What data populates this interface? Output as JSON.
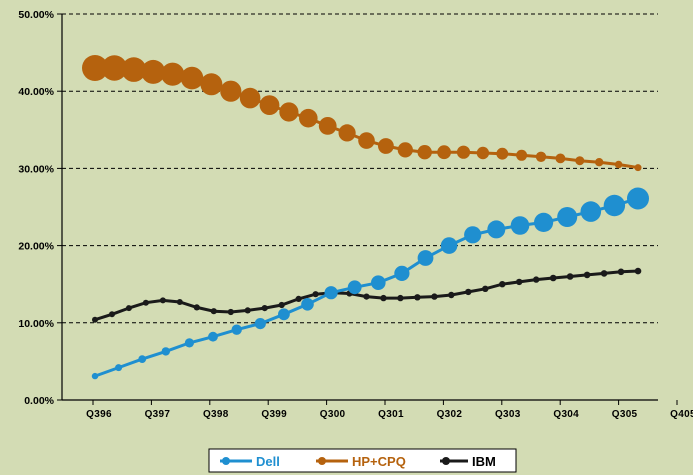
{
  "chart_data": {
    "type": "line",
    "title": "",
    "xlabel": "",
    "ylabel": "",
    "ylim": [
      0,
      50
    ],
    "y_ticks": [
      "0.00%",
      "10.00%",
      "20.00%",
      "30.00%",
      "40.00%",
      "50.00%"
    ],
    "x_ticks": [
      "Q396",
      "Q397",
      "Q398",
      "Q399",
      "Q300",
      "Q301",
      "Q302",
      "Q303",
      "Q304",
      "Q305",
      "Q405"
    ],
    "grid": "horizontal dashed",
    "legend_position": "bottom",
    "series": [
      {
        "name": "Dell",
        "color": "#1f8fd0",
        "values": [
          3.1,
          4.2,
          5.3,
          6.3,
          7.4,
          8.2,
          9.1,
          9.9,
          11.1,
          12.4,
          13.9,
          14.6,
          15.2,
          16.4,
          18.4,
          20.0,
          21.4,
          22.1,
          22.6,
          23.0,
          23.7,
          24.4,
          25.2,
          26.1
        ]
      },
      {
        "name": "HP+CPQ",
        "color": "#b5620e",
        "values": [
          43.0,
          43.0,
          42.8,
          42.5,
          42.2,
          41.7,
          40.9,
          40.0,
          39.1,
          38.2,
          37.3,
          36.5,
          35.5,
          34.6,
          33.6,
          32.9,
          32.4,
          32.1,
          32.1,
          32.1,
          32.0,
          31.9,
          31.7,
          31.5,
          31.3,
          31.0,
          30.8,
          30.5,
          30.1
        ]
      },
      {
        "name": "IBM",
        "color": "#1a1a1a",
        "values": [
          10.4,
          11.1,
          11.9,
          12.6,
          12.9,
          12.7,
          12.0,
          11.5,
          11.4,
          11.6,
          11.9,
          12.3,
          13.1,
          13.7,
          13.9,
          13.8,
          13.4,
          13.2,
          13.2,
          13.3,
          13.4,
          13.6,
          14.0,
          14.4,
          15.0,
          15.3,
          15.6,
          15.8,
          16.0,
          16.2,
          16.4,
          16.6,
          16.7
        ]
      }
    ]
  }
}
